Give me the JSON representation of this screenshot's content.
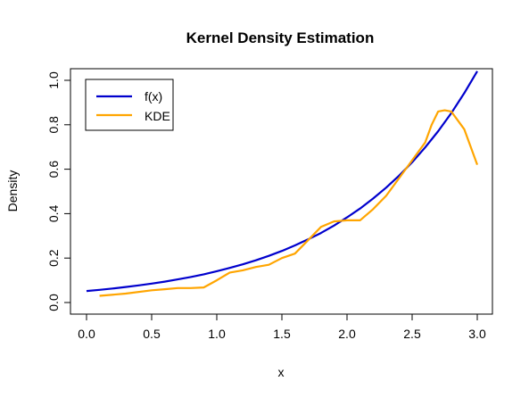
{
  "chart_data": {
    "type": "line",
    "title": "Kernel Density Estimation",
    "xlabel": "x",
    "ylabel": "Density",
    "xlim": [
      0,
      3
    ],
    "ylim": [
      0,
      1
    ],
    "xticks": [
      "0.0",
      "0.5",
      "1.0",
      "1.5",
      "2.0",
      "2.5",
      "3.0"
    ],
    "yticks": [
      "0.0",
      "0.2",
      "0.4",
      "0.6",
      "0.8",
      "1.0"
    ],
    "legend_position": "top-left",
    "grid": false,
    "series": [
      {
        "name": "f(x)",
        "color": "#0000CD",
        "x": [
          0.0,
          0.1,
          0.2,
          0.3,
          0.4,
          0.5,
          0.6,
          0.7,
          0.8,
          0.9,
          1.0,
          1.1,
          1.2,
          1.3,
          1.4,
          1.5,
          1.6,
          1.7,
          1.8,
          1.9,
          2.0,
          2.1,
          2.2,
          2.3,
          2.4,
          2.5,
          2.6,
          2.7,
          2.8,
          2.9,
          3.0
        ],
        "y": [
          0.052,
          0.057,
          0.063,
          0.07,
          0.077,
          0.085,
          0.094,
          0.104,
          0.115,
          0.127,
          0.141,
          0.156,
          0.172,
          0.19,
          0.21,
          0.232,
          0.257,
          0.284,
          0.313,
          0.346,
          0.383,
          0.423,
          0.468,
          0.517,
          0.571,
          0.631,
          0.698,
          0.771,
          0.852,
          0.942,
          1.041
        ]
      },
      {
        "name": "KDE",
        "color": "#FFA500",
        "x": [
          0.1,
          0.3,
          0.5,
          0.6,
          0.7,
          0.8,
          0.9,
          1.0,
          1.1,
          1.2,
          1.3,
          1.4,
          1.5,
          1.6,
          1.7,
          1.8,
          1.9,
          2.0,
          2.1,
          2.2,
          2.3,
          2.4,
          2.5,
          2.6,
          2.65,
          2.7,
          2.75,
          2.8,
          2.85,
          2.9,
          3.0
        ],
        "y": [
          0.03,
          0.04,
          0.055,
          0.06,
          0.065,
          0.065,
          0.068,
          0.1,
          0.135,
          0.145,
          0.16,
          0.17,
          0.2,
          0.22,
          0.28,
          0.34,
          0.365,
          0.37,
          0.37,
          0.42,
          0.48,
          0.56,
          0.64,
          0.72,
          0.8,
          0.86,
          0.865,
          0.86,
          0.82,
          0.78,
          0.62
        ]
      }
    ]
  }
}
